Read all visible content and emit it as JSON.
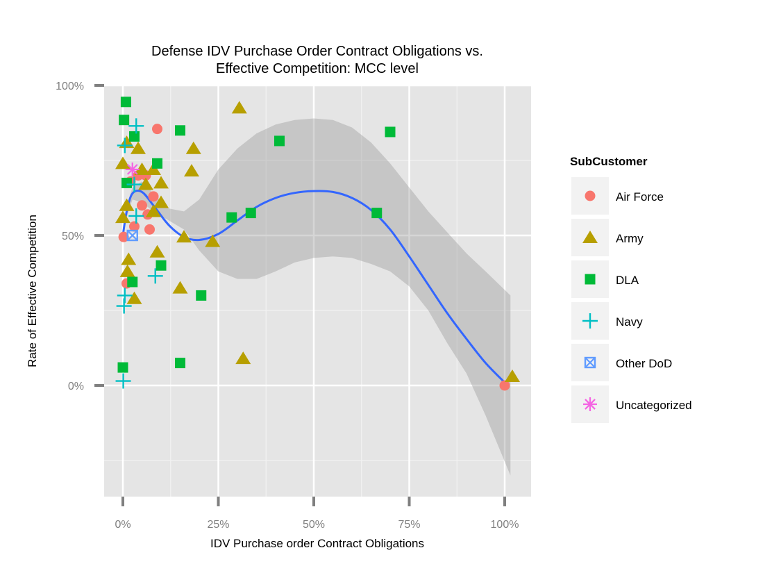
{
  "chart_data": {
    "type": "scatter",
    "title_lines": [
      "Defense IDV Purchase Order Contract Obligations vs.",
      "Effective Competition: MCC level"
    ],
    "xlabel": "IDV Purchase order Contract Obligations",
    "ylabel": "Rate of Effective Competition",
    "xlim": [
      -0.05,
      1.07
    ],
    "ylim": [
      -0.37,
      1.0
    ],
    "x_ticks": [
      0,
      0.25,
      0.5,
      0.75,
      1.0
    ],
    "x_tick_labels": [
      "0%",
      "25%",
      "50%",
      "75%",
      "100%"
    ],
    "y_ticks": [
      0,
      0.5,
      1.0
    ],
    "y_tick_labels": [
      "0%",
      "50%",
      "100%"
    ],
    "grid": true,
    "legend": {
      "title": "SubCustomer",
      "placement": "right",
      "entries": [
        {
          "name": "Air Force",
          "shape": "circle",
          "color": "#F8766D"
        },
        {
          "name": "Army",
          "shape": "triangle",
          "color": "#B79F00"
        },
        {
          "name": "DLA",
          "shape": "square",
          "color": "#00BA38"
        },
        {
          "name": "Navy",
          "shape": "plus",
          "color": "#00BFC4"
        },
        {
          "name": "Other DoD",
          "shape": "boxcross",
          "color": "#619CFF"
        },
        {
          "name": "Uncategorized",
          "shape": "asterisk",
          "color": "#F564E3"
        }
      ]
    },
    "series": [
      {
        "name": "Air Force",
        "points": [
          [
            0.09,
            0.855
          ],
          [
            0.002,
            0.495
          ],
          [
            0.01,
            0.34
          ],
          [
            0.02,
            0.68
          ],
          [
            0.04,
            0.7
          ],
          [
            0.06,
            0.7
          ],
          [
            0.07,
            0.52
          ],
          [
            0.03,
            0.53
          ],
          [
            0.05,
            0.6
          ],
          [
            0.08,
            0.63
          ],
          [
            0.065,
            0.57
          ],
          [
            1.0,
            0.0
          ]
        ]
      },
      {
        "name": "Army",
        "points": [
          [
            0.305,
            0.925
          ],
          [
            0.0,
            0.74
          ],
          [
            0.01,
            0.81
          ],
          [
            0.04,
            0.79
          ],
          [
            0.185,
            0.79
          ],
          [
            0.08,
            0.72
          ],
          [
            0.18,
            0.715
          ],
          [
            0.05,
            0.72
          ],
          [
            0.06,
            0.67
          ],
          [
            0.1,
            0.675
          ],
          [
            0.1,
            0.61
          ],
          [
            0.01,
            0.6
          ],
          [
            0.015,
            0.42
          ],
          [
            0.012,
            0.38
          ],
          [
            0.03,
            0.29
          ],
          [
            0.09,
            0.445
          ],
          [
            0.16,
            0.495
          ],
          [
            0.235,
            0.48
          ],
          [
            0.15,
            0.325
          ],
          [
            0.315,
            0.09
          ],
          [
            1.02,
            0.03
          ],
          [
            0.0,
            0.56
          ],
          [
            0.08,
            0.58
          ]
        ]
      },
      {
        "name": "DLA",
        "points": [
          [
            0.008,
            0.945
          ],
          [
            0.003,
            0.885
          ],
          [
            0.15,
            0.85
          ],
          [
            0.7,
            0.845
          ],
          [
            0.41,
            0.815
          ],
          [
            0.03,
            0.83
          ],
          [
            0.09,
            0.74
          ],
          [
            0.01,
            0.675
          ],
          [
            0.285,
            0.56
          ],
          [
            0.335,
            0.575
          ],
          [
            0.665,
            0.575
          ],
          [
            0.1,
            0.4
          ],
          [
            0.025,
            0.345
          ],
          [
            0.205,
            0.3
          ],
          [
            0.0,
            0.06
          ],
          [
            0.15,
            0.075
          ]
        ]
      },
      {
        "name": "Navy",
        "points": [
          [
            0.035,
            0.865
          ],
          [
            0.005,
            0.8
          ],
          [
            0.03,
            0.67
          ],
          [
            0.035,
            0.565
          ],
          [
            0.085,
            0.365
          ],
          [
            0.005,
            0.3
          ],
          [
            0.003,
            0.265
          ],
          [
            0.001,
            0.015
          ]
        ]
      },
      {
        "name": "Other DoD",
        "points": [
          [
            0.025,
            0.5
          ]
        ]
      },
      {
        "name": "Uncategorized",
        "points": [
          [
            0.025,
            0.72
          ]
        ]
      }
    ],
    "smooth": {
      "color": "#3366FF",
      "band_color": "#999999",
      "points": [
        [
          0.0,
          0.5
        ],
        [
          0.01,
          0.58
        ],
        [
          0.025,
          0.64
        ],
        [
          0.05,
          0.645
        ],
        [
          0.08,
          0.6
        ],
        [
          0.12,
          0.535
        ],
        [
          0.16,
          0.495
        ],
        [
          0.2,
          0.485
        ],
        [
          0.25,
          0.505
        ],
        [
          0.3,
          0.55
        ],
        [
          0.35,
          0.595
        ],
        [
          0.4,
          0.625
        ],
        [
          0.45,
          0.642
        ],
        [
          0.5,
          0.648
        ],
        [
          0.55,
          0.645
        ],
        [
          0.6,
          0.625
        ],
        [
          0.65,
          0.585
        ],
        [
          0.7,
          0.52
        ],
        [
          0.75,
          0.43
        ],
        [
          0.8,
          0.335
        ],
        [
          0.85,
          0.24
        ],
        [
          0.9,
          0.155
        ],
        [
          0.95,
          0.075
        ],
        [
          1.0,
          0.01
        ]
      ],
      "upper": [
        [
          0.0,
          0.5
        ],
        [
          0.01,
          0.6
        ],
        [
          0.025,
          0.66
        ],
        [
          0.05,
          0.68
        ],
        [
          0.08,
          0.64
        ],
        [
          0.12,
          0.59
        ],
        [
          0.16,
          0.58
        ],
        [
          0.2,
          0.62
        ],
        [
          0.25,
          0.72
        ],
        [
          0.3,
          0.79
        ],
        [
          0.35,
          0.84
        ],
        [
          0.4,
          0.87
        ],
        [
          0.45,
          0.885
        ],
        [
          0.5,
          0.89
        ],
        [
          0.55,
          0.885
        ],
        [
          0.6,
          0.86
        ],
        [
          0.65,
          0.81
        ],
        [
          0.7,
          0.74
        ],
        [
          0.75,
          0.66
        ],
        [
          0.8,
          0.58
        ],
        [
          0.85,
          0.51
        ],
        [
          0.9,
          0.44
        ],
        [
          0.95,
          0.38
        ],
        [
          1.015,
          0.3
        ]
      ],
      "lower": [
        [
          1.015,
          -0.3
        ],
        [
          0.95,
          -0.1
        ],
        [
          0.9,
          0.04
        ],
        [
          0.85,
          0.14
        ],
        [
          0.8,
          0.25
        ],
        [
          0.75,
          0.33
        ],
        [
          0.7,
          0.38
        ],
        [
          0.65,
          0.405
        ],
        [
          0.6,
          0.425
        ],
        [
          0.55,
          0.43
        ],
        [
          0.5,
          0.425
        ],
        [
          0.45,
          0.41
        ],
        [
          0.4,
          0.38
        ],
        [
          0.35,
          0.355
        ],
        [
          0.3,
          0.355
        ],
        [
          0.25,
          0.38
        ],
        [
          0.2,
          0.45
        ],
        [
          0.16,
          0.52
        ],
        [
          0.12,
          0.55
        ],
        [
          0.08,
          0.58
        ],
        [
          0.05,
          0.61
        ],
        [
          0.025,
          0.62
        ],
        [
          0.01,
          0.56
        ],
        [
          0.0,
          0.5
        ]
      ]
    }
  }
}
